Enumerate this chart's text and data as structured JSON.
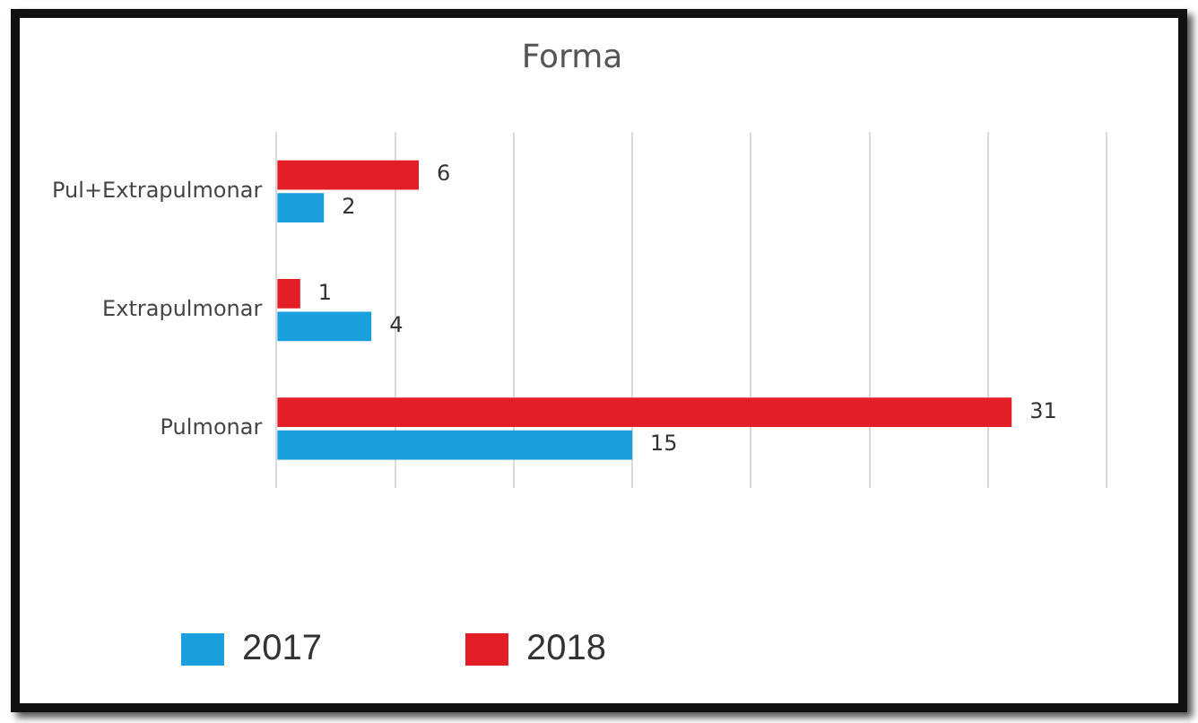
{
  "chart_data": {
    "type": "bar",
    "orientation": "horizontal",
    "title": "Forma",
    "categories": [
      "Pul+Extrapulmonar",
      "Extrapulmonar",
      "Pulmonar"
    ],
    "series": [
      {
        "name": "2017",
        "color": "#1aa0dc",
        "values": [
          2,
          4,
          15
        ]
      },
      {
        "name": "2018",
        "color": "#e41e26",
        "values": [
          6,
          1,
          31
        ]
      }
    ],
    "xlim": [
      0,
      35
    ],
    "xticks": [
      {
        "value": 0,
        "label": null
      },
      {
        "value": 5,
        "label": null
      },
      {
        "value": 10,
        "label": null
      },
      {
        "value": 15,
        "label": null
      },
      {
        "value": 20,
        "label": null
      },
      {
        "value": 25,
        "label": null
      },
      {
        "value": 30,
        "label": null
      },
      {
        "value": 35,
        "label": null
      }
    ],
    "tick_labels": "y",
    "grid": "x",
    "legend": "bottom",
    "data_labels": true
  }
}
